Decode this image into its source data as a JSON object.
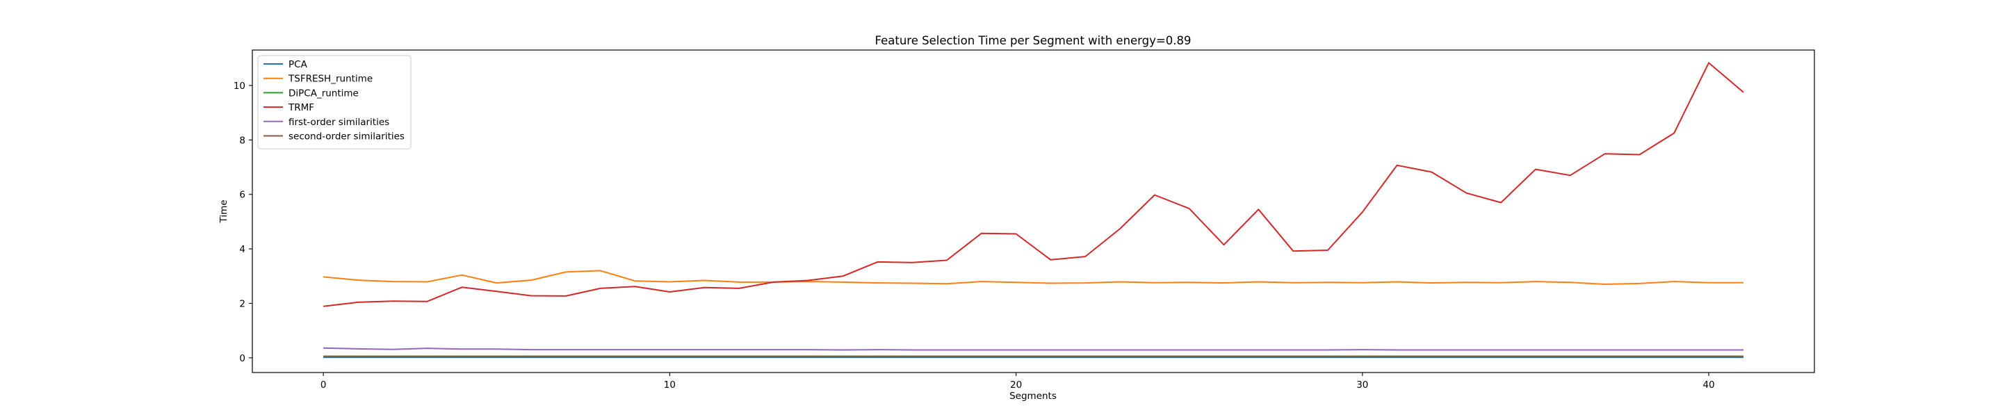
{
  "chart_data": {
    "type": "line",
    "title": "Feature Selection Time per Segment with energy=0.89",
    "xlabel": "Segments",
    "ylabel": "Time",
    "xlim": [
      -2.05,
      43.05
    ],
    "ylim": [
      -0.54,
      11.3
    ],
    "xticks": [
      0,
      10,
      20,
      30,
      40
    ],
    "yticks": [
      0,
      2,
      4,
      6,
      8,
      10
    ],
    "grid": false,
    "legend_position": "top-left",
    "x": [
      0,
      1,
      2,
      3,
      4,
      5,
      6,
      7,
      8,
      9,
      10,
      11,
      12,
      13,
      14,
      15,
      16,
      17,
      18,
      19,
      20,
      21,
      22,
      23,
      24,
      25,
      26,
      27,
      28,
      29,
      30,
      31,
      32,
      33,
      34,
      35,
      36,
      37,
      38,
      39,
      40,
      41
    ],
    "series": [
      {
        "name": "PCA",
        "color": "#1f77b4",
        "values": [
          0.02,
          0.02,
          0.02,
          0.02,
          0.02,
          0.02,
          0.02,
          0.02,
          0.02,
          0.02,
          0.02,
          0.02,
          0.02,
          0.02,
          0.02,
          0.02,
          0.02,
          0.02,
          0.02,
          0.02,
          0.02,
          0.02,
          0.02,
          0.02,
          0.02,
          0.02,
          0.02,
          0.02,
          0.02,
          0.02,
          0.02,
          0.02,
          0.02,
          0.02,
          0.02,
          0.02,
          0.02,
          0.02,
          0.02,
          0.02,
          0.02,
          0.02
        ]
      },
      {
        "name": "TSFRESH_runtime",
        "color": "#ff7f0e",
        "values": [
          2.97,
          2.85,
          2.8,
          2.79,
          3.04,
          2.75,
          2.85,
          3.15,
          3.2,
          2.82,
          2.79,
          2.84,
          2.78,
          2.78,
          2.8,
          2.78,
          2.75,
          2.74,
          2.72,
          2.8,
          2.77,
          2.74,
          2.75,
          2.79,
          2.76,
          2.77,
          2.75,
          2.79,
          2.76,
          2.77,
          2.76,
          2.79,
          2.75,
          2.77,
          2.76,
          2.8,
          2.77,
          2.7,
          2.73,
          2.8,
          2.76,
          2.76
        ]
      },
      {
        "name": "DiPCA_runtime",
        "color": "#2ca02c",
        "values": [
          0.06,
          0.06,
          0.06,
          0.06,
          0.06,
          0.06,
          0.06,
          0.06,
          0.06,
          0.06,
          0.06,
          0.06,
          0.06,
          0.06,
          0.06,
          0.06,
          0.06,
          0.06,
          0.06,
          0.06,
          0.06,
          0.06,
          0.06,
          0.06,
          0.06,
          0.06,
          0.06,
          0.06,
          0.06,
          0.06,
          0.06,
          0.06,
          0.06,
          0.06,
          0.06,
          0.06,
          0.06,
          0.06,
          0.06,
          0.06,
          0.06,
          0.06
        ]
      },
      {
        "name": "TRMF",
        "color": "#d62728",
        "values": [
          1.89,
          2.04,
          2.08,
          2.07,
          2.59,
          2.44,
          2.28,
          2.27,
          2.55,
          2.62,
          2.42,
          2.58,
          2.55,
          2.78,
          2.84,
          3.0,
          3.52,
          3.5,
          3.58,
          4.57,
          4.55,
          3.6,
          3.72,
          4.74,
          5.98,
          5.48,
          4.15,
          5.45,
          3.92,
          3.95,
          5.35,
          7.07,
          6.82,
          6.05,
          5.7,
          6.92,
          6.7,
          7.49,
          7.46,
          8.25,
          10.83,
          9.75
        ]
      },
      {
        "name": "first-order similarities",
        "color": "#9467bd",
        "values": [
          0.36,
          0.33,
          0.31,
          0.35,
          0.32,
          0.32,
          0.3,
          0.3,
          0.3,
          0.3,
          0.3,
          0.3,
          0.3,
          0.3,
          0.3,
          0.29,
          0.3,
          0.29,
          0.29,
          0.29,
          0.29,
          0.29,
          0.29,
          0.29,
          0.29,
          0.29,
          0.29,
          0.29,
          0.29,
          0.29,
          0.3,
          0.29,
          0.29,
          0.29,
          0.29,
          0.29,
          0.29,
          0.29,
          0.29,
          0.29,
          0.29,
          0.29
        ]
      },
      {
        "name": "second-order similarities",
        "color": "#8c564b",
        "values": [
          0.04,
          0.04,
          0.04,
          0.04,
          0.04,
          0.04,
          0.04,
          0.04,
          0.04,
          0.04,
          0.04,
          0.04,
          0.04,
          0.04,
          0.04,
          0.04,
          0.04,
          0.04,
          0.04,
          0.04,
          0.04,
          0.04,
          0.04,
          0.04,
          0.04,
          0.04,
          0.04,
          0.04,
          0.04,
          0.04,
          0.04,
          0.04,
          0.04,
          0.04,
          0.04,
          0.04,
          0.04,
          0.04,
          0.04,
          0.04,
          0.04,
          0.04
        ]
      }
    ]
  }
}
